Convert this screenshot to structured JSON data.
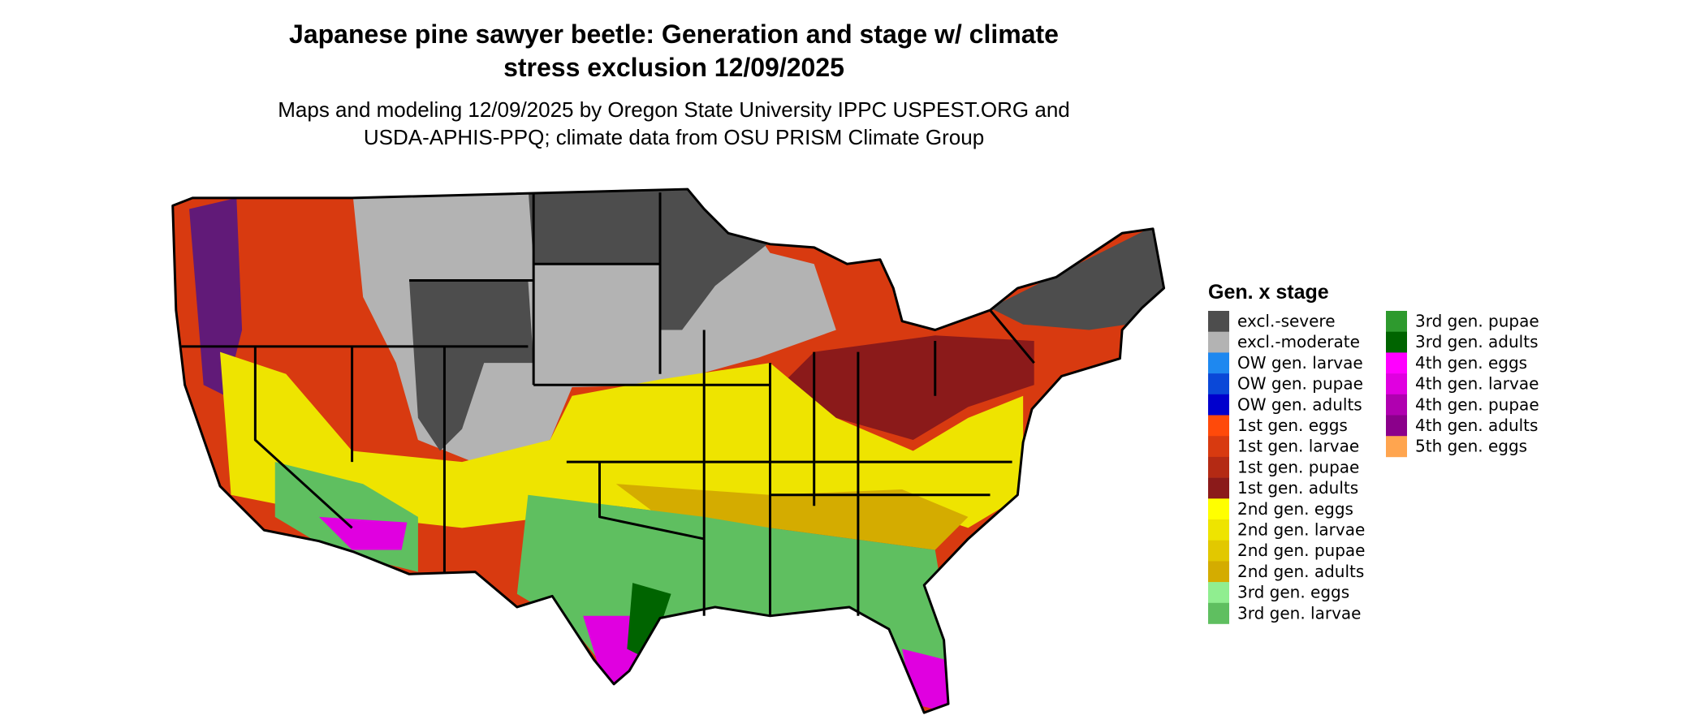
{
  "title": [
    "Japanese pine sawyer beetle: Generation and stage w/ climate",
    "stress exclusion 12/09/2025"
  ],
  "subtitle": [
    "Maps and modeling 12/09/2025 by Oregon State University IPPC USPEST.ORG and",
    "USDA-APHIS-PPQ; climate data from OSU PRISM Climate Group"
  ],
  "legend": {
    "title": "Gen. x stage",
    "items": [
      {
        "name": "excl.-severe",
        "color": "#4d4d4d"
      },
      {
        "name": "excl.-moderate",
        "color": "#b3b3b3"
      },
      {
        "name": "OW gen. larvae",
        "color": "#1e88f0"
      },
      {
        "name": "OW gen. pupae",
        "color": "#0a48d8"
      },
      {
        "name": "OW gen. adults",
        "color": "#0000cd"
      },
      {
        "name": "1st gen. eggs",
        "color": "#ff4a0a"
      },
      {
        "name": "1st gen. larvae",
        "color": "#d83a10"
      },
      {
        "name": "1st gen. pupae",
        "color": "#b42a14"
      },
      {
        "name": "1st gen. adults",
        "color": "#8b1a1a"
      },
      {
        "name": "2nd gen. eggs",
        "color": "#ffff00"
      },
      {
        "name": "2nd gen. larvae",
        "color": "#eee400"
      },
      {
        "name": "2nd gen. pupae",
        "color": "#e2c800"
      },
      {
        "name": "2nd gen. adults",
        "color": "#d4ac00"
      },
      {
        "name": "3rd gen. eggs",
        "color": "#90ee90"
      },
      {
        "name": "3rd gen. larvae",
        "color": "#5fbf60"
      },
      {
        "name": "3rd gen. pupae",
        "color": "#2e9a2e"
      },
      {
        "name": "3rd gen. adults",
        "color": "#006400"
      },
      {
        "name": "4th gen. eggs",
        "color": "#ff00ff"
      },
      {
        "name": "4th gen. larvae",
        "color": "#e000e0"
      },
      {
        "name": "4th gen. pupae",
        "color": "#b000b0"
      },
      {
        "name": "4th gen. adults",
        "color": "#8b008b"
      },
      {
        "name": "5th gen. eggs",
        "color": "#ffa54f"
      }
    ]
  }
}
